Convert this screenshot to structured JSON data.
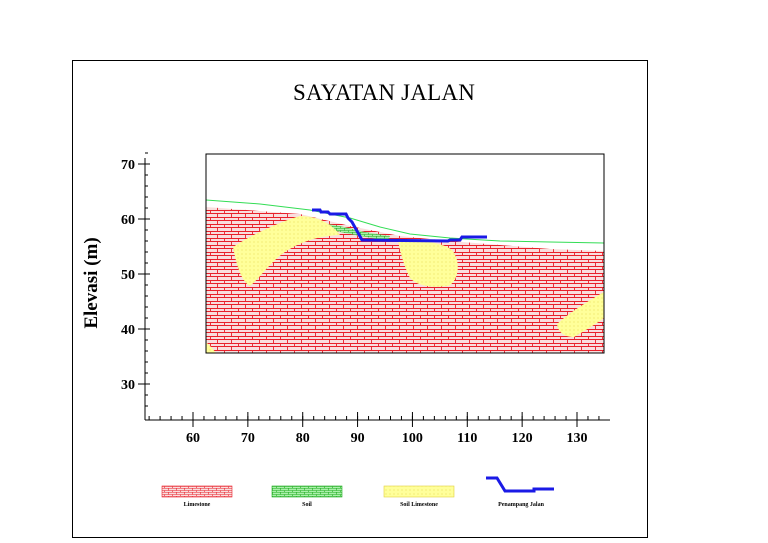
{
  "title": "SAYATAN JALAN",
  "y_axis_label": "Elevasi (m)",
  "colors": {
    "limestone_fill": "#f7d7d7",
    "limestone_line": "#e8202a",
    "soil": "#33cc33",
    "soil_limestone": "#ffff88",
    "road": "#1a1ae6",
    "surface_line": "#33dd55"
  },
  "axes": {
    "x_ticks": [
      "60",
      "70",
      "80",
      "90",
      "100",
      "110",
      "120",
      "130"
    ],
    "y_ticks": [
      "30",
      "40",
      "50",
      "60",
      "70"
    ],
    "x_range": [
      50,
      135
    ],
    "y_range": [
      25,
      72
    ]
  },
  "section": {
    "x_range": [
      62,
      134
    ],
    "y_range": [
      36,
      62.5
    ]
  },
  "legend": [
    {
      "label": "Limestone"
    },
    {
      "label": "Soil"
    },
    {
      "label": "Soil Limestone"
    },
    {
      "label": "Penampang Jalan"
    }
  ]
}
